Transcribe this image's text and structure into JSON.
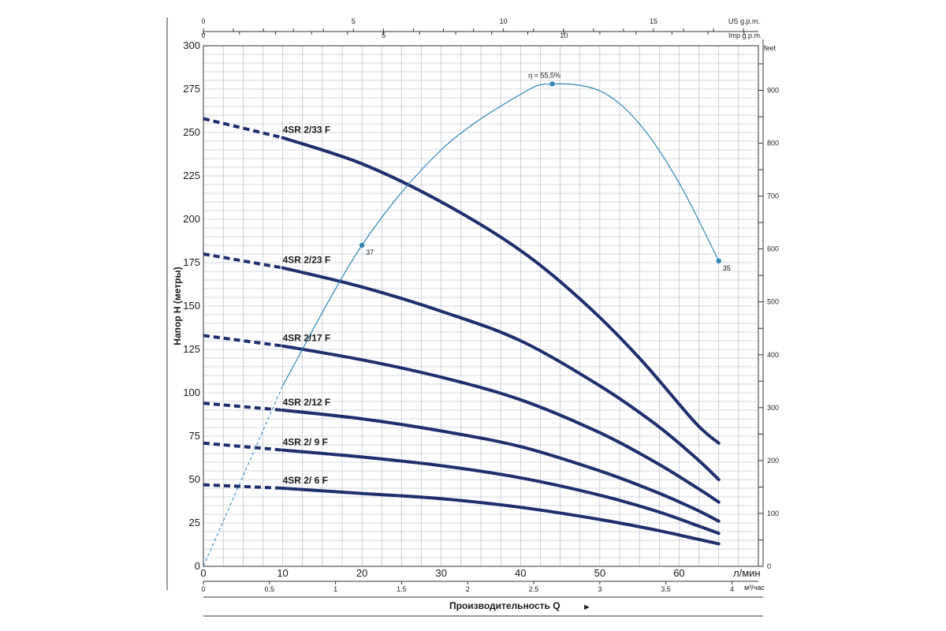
{
  "chart_data": {
    "type": "line",
    "xlabel": "Производительность Q",
    "ylabel": "Напор H (метры)",
    "x_unit": "л/мин",
    "x_ticks": [
      10,
      20,
      30,
      40,
      50,
      60
    ],
    "xlim": [
      0,
      70
    ],
    "ylim": [
      0,
      300
    ],
    "y_ticks": [
      0,
      25,
      50,
      75,
      100,
      125,
      150,
      175,
      200,
      225,
      250,
      275,
      300
    ],
    "grid": true,
    "secondary_axes": {
      "m3h": {
        "unit": "м³/час",
        "ticks": [
          "0",
          "0.5",
          "1",
          "1.5",
          "2",
          "2.5",
          "3",
          "3.5",
          "4"
        ]
      },
      "us_gpm": {
        "unit": "US g.p.m.",
        "ticks": [
          "0",
          "5",
          "10",
          "15"
        ]
      },
      "imp_gpm": {
        "unit": "Imp g.p.m.",
        "ticks": [
          "0",
          "5",
          "10"
        ]
      },
      "feet": {
        "unit": "feet",
        "ticks": [
          "0",
          "100",
          "200",
          "300",
          "400",
          "500",
          "600",
          "700",
          "800",
          "900"
        ]
      }
    },
    "series": [
      {
        "name": "4SR 2/33 F",
        "x": [
          0,
          10,
          20,
          30,
          40,
          48,
          55,
          62,
          65
        ],
        "y": [
          258,
          247,
          232,
          210,
          182,
          152,
          120,
          83,
          71
        ]
      },
      {
        "name": "4SR 2/23 F",
        "x": [
          0,
          10,
          20,
          30,
          40,
          50,
          57,
          62,
          65
        ],
        "y": [
          180,
          172,
          161,
          147,
          130,
          104,
          82,
          63,
          50
        ]
      },
      {
        "name": "4SR 2/17 F",
        "x": [
          0,
          10,
          20,
          30,
          40,
          50,
          57,
          62,
          65
        ],
        "y": [
          133,
          127,
          119,
          109,
          96,
          77,
          60,
          46,
          37
        ]
      },
      {
        "name": "4SR 2/12 F",
        "x": [
          0,
          10,
          20,
          30,
          40,
          50,
          57,
          62,
          65
        ],
        "y": [
          94,
          90,
          85,
          78,
          69,
          55,
          43,
          33,
          26
        ]
      },
      {
        "name": "4SR 2/ 9 F",
        "x": [
          0,
          10,
          20,
          30,
          40,
          50,
          57,
          62,
          65
        ],
        "y": [
          71,
          67,
          63,
          58,
          51,
          41,
          32,
          24,
          19
        ]
      },
      {
        "name": "4SR 2/ 6 F",
        "x": [
          0,
          10,
          20,
          30,
          40,
          50,
          57,
          62,
          65
        ],
        "y": [
          47,
          45,
          42,
          39,
          34,
          27,
          21,
          16,
          13
        ]
      }
    ],
    "efficiency": {
      "x": [
        0,
        10,
        20,
        30,
        40,
        44,
        50,
        55,
        60,
        65
      ],
      "y": [
        0,
        104,
        185,
        240,
        272,
        278,
        274,
        255,
        221,
        176
      ],
      "points": [
        {
          "x": 20,
          "y": 185,
          "label": "37"
        },
        {
          "x": 44,
          "y": 278,
          "label": "η = 55,5%"
        },
        {
          "x": 65,
          "y": 176,
          "label": "35"
        }
      ]
    }
  },
  "colors": {
    "curve": "#1f2e6e",
    "efficiency": "#2f86b8",
    "grid": "#aab4c0",
    "axis": "#333333"
  }
}
